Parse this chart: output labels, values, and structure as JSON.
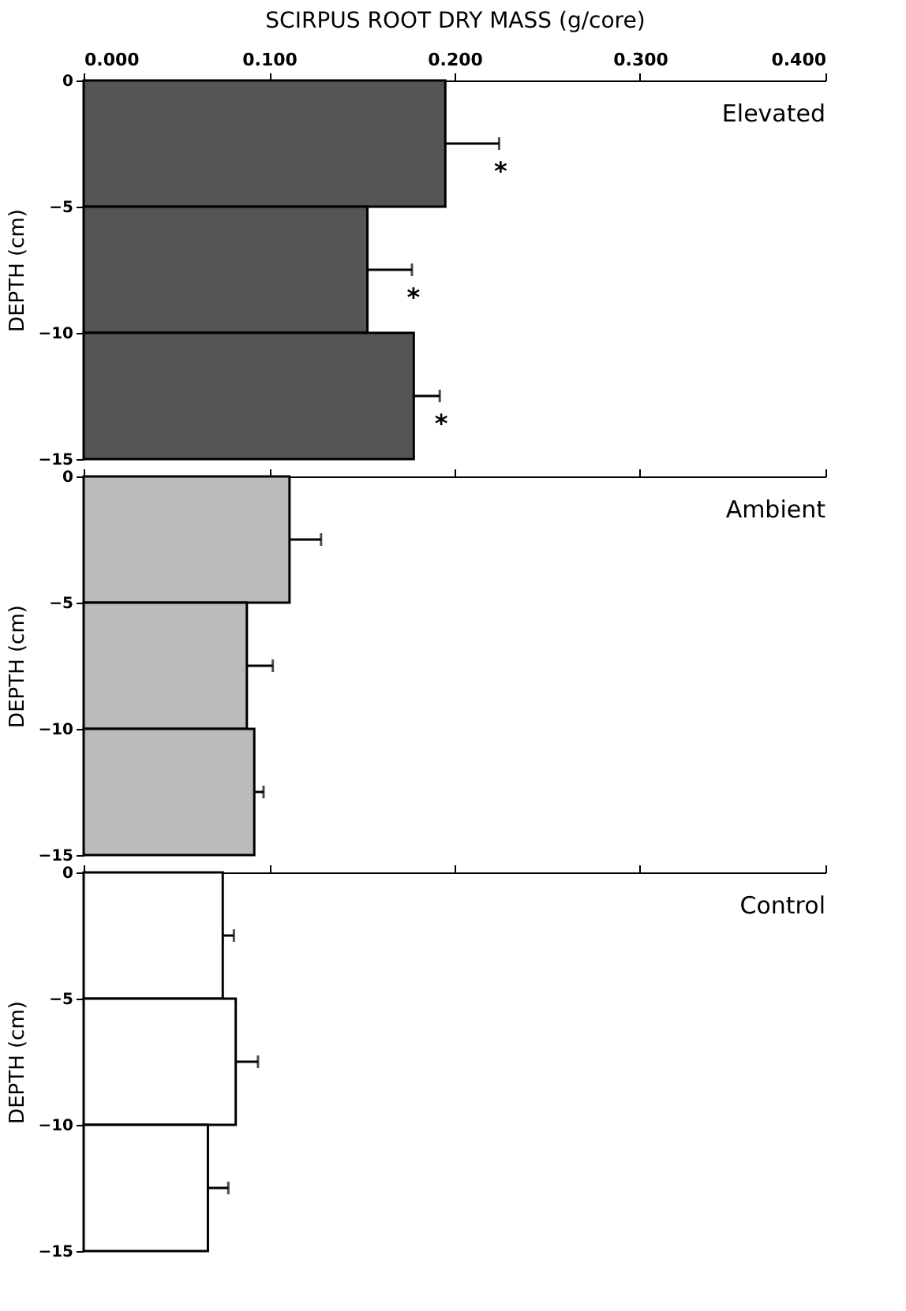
{
  "chart_data": [
    {
      "type": "bar",
      "orientation": "horizontal",
      "title": "Elevated",
      "xlabel": "SCIRPUS ROOT DRY MASS  (g/core)",
      "ylabel": "DEPTH (cm)",
      "x": [
        -2.5,
        -7.5,
        -12.5
      ],
      "values": [
        0.195,
        0.153,
        0.178
      ],
      "errors": [
        [
          0.195,
          0.224
        ],
        [
          0.153,
          0.177
        ],
        [
          0.178,
          0.192
        ]
      ],
      "color": "#555555",
      "annotations": [
        {
          "text": "*",
          "x": 0.224,
          "y": -2.5
        },
        {
          "text": "*",
          "x": 0.177,
          "y": -7.5
        },
        {
          "text": "*",
          "x": 0.192,
          "y": -12.5
        }
      ],
      "xlim": [
        0,
        0.4
      ],
      "xticks": [
        {
          "value": 0,
          "label": "0.000"
        },
        {
          "value": 0.1,
          "label": "0.100"
        },
        {
          "value": 0.2,
          "label": "0.200"
        },
        {
          "value": 0.3,
          "label": "0.300"
        },
        {
          "value": 0.4,
          "label": "0.400"
        }
      ],
      "ylim": [
        -15,
        0
      ],
      "yticks": [
        0,
        -5,
        -10,
        -15
      ],
      "grid": false
    },
    {
      "type": "bar",
      "orientation": "horizontal",
      "title": "Ambient",
      "ylabel": "DEPTH (cm)",
      "x": [
        -2.5,
        -7.5,
        -12.5
      ],
      "values": [
        0.111,
        0.088,
        0.092
      ],
      "errors": [
        [
          0.111,
          0.128
        ],
        [
          0.088,
          0.102
        ],
        [
          0.092,
          0.097
        ]
      ],
      "color": "#bbbbbb",
      "xlim": [
        0,
        0.4
      ],
      "xticks": [
        0,
        0.1,
        0.2,
        0.3,
        0.4
      ],
      "ylim": [
        -15,
        0
      ],
      "yticks": [
        0,
        -5,
        -10,
        -15
      ],
      "tick_labels": "y",
      "grid": false
    },
    {
      "type": "bar",
      "orientation": "horizontal",
      "title": "Control",
      "ylabel": "DEPTH (cm)",
      "x": [
        -2.5,
        -7.5,
        -12.5
      ],
      "values": [
        0.075,
        0.082,
        0.067
      ],
      "errors": [
        [
          0.075,
          0.081
        ],
        [
          0.082,
          0.094
        ],
        [
          0.067,
          0.078
        ]
      ],
      "color": "#ffffff",
      "xlim": [
        0,
        0.4
      ],
      "xticks": [
        0,
        0.1,
        0.2,
        0.3,
        0.4
      ],
      "ylim": [
        -15,
        0
      ],
      "yticks": [
        0,
        -5,
        -10,
        -15
      ],
      "tick_labels": "y",
      "grid": false
    }
  ]
}
